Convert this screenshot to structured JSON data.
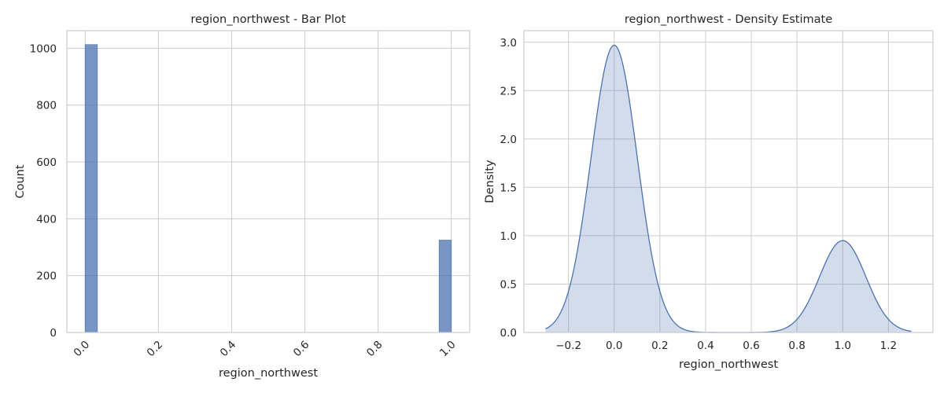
{
  "chart_data": [
    {
      "type": "bar",
      "title": "region_northwest - Bar Plot",
      "xlabel": "region_northwest",
      "ylabel": "Count",
      "xlim": [
        -0.05,
        1.05
      ],
      "ylim": [
        0,
        1062
      ],
      "xticks": [
        0.0,
        0.2,
        0.4,
        0.6,
        0.8,
        1.0
      ],
      "xtick_labels": [
        "0.0",
        "0.2",
        "0.4",
        "0.6",
        "0.8",
        "1.0"
      ],
      "xtick_rotation": 45,
      "yticks": [
        0,
        200,
        400,
        600,
        800,
        1000
      ],
      "ytick_labels": [
        "0",
        "200",
        "400",
        "600",
        "800",
        "1000"
      ],
      "bars": [
        {
          "x0": 0.0,
          "x1": 0.0333,
          "value": 1013
        },
        {
          "x0": 0.9667,
          "x1": 1.0,
          "value": 325
        }
      ],
      "grid": true
    },
    {
      "type": "area",
      "title": "region_northwest - Density Estimate",
      "xlabel": "region_northwest",
      "ylabel": "Density",
      "xlim": [
        -0.395,
        1.395
      ],
      "ylim": [
        0,
        3.12
      ],
      "xticks": [
        -0.2,
        0.0,
        0.2,
        0.4,
        0.6,
        0.8,
        1.0,
        1.2
      ],
      "xtick_labels": [
        "−0.2",
        "0.0",
        "0.2",
        "0.4",
        "0.6",
        "0.8",
        "1.0",
        "1.2"
      ],
      "yticks": [
        0.0,
        0.5,
        1.0,
        1.5,
        2.0,
        2.5,
        3.0
      ],
      "ytick_labels": [
        "0.0",
        "0.5",
        "1.0",
        "1.5",
        "2.0",
        "2.5",
        "3.0"
      ],
      "x_range": [
        -0.3,
        1.3
      ],
      "components": [
        {
          "mean": 0.0,
          "peak_density": 2.97
        },
        {
          "mean": 1.0,
          "peak_density": 0.95
        }
      ],
      "bandwidth": 0.1015,
      "grid": true
    }
  ]
}
